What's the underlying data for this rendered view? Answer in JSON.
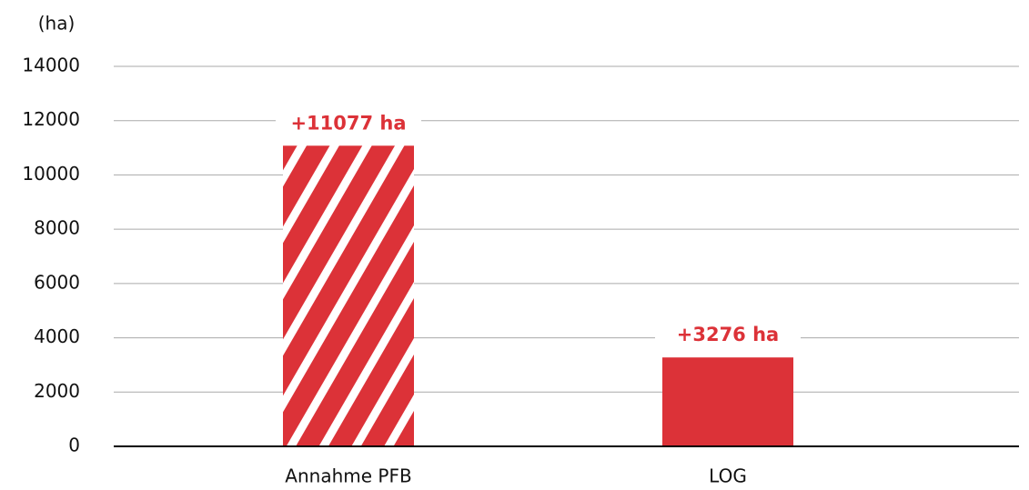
{
  "chart_data": {
    "type": "bar",
    "y_axis_label": "(ha)",
    "categories": [
      "Annahme PFB",
      "LOG"
    ],
    "values": [
      11077,
      3276
    ],
    "value_labels": [
      "+11077 ha",
      "+3276 ha"
    ],
    "hatched": [
      true,
      false
    ],
    "color": "#dc3238",
    "ylim": [
      0,
      14000
    ],
    "yticks": [
      0,
      2000,
      4000,
      6000,
      8000,
      10000,
      12000,
      14000
    ],
    "grid": true
  }
}
